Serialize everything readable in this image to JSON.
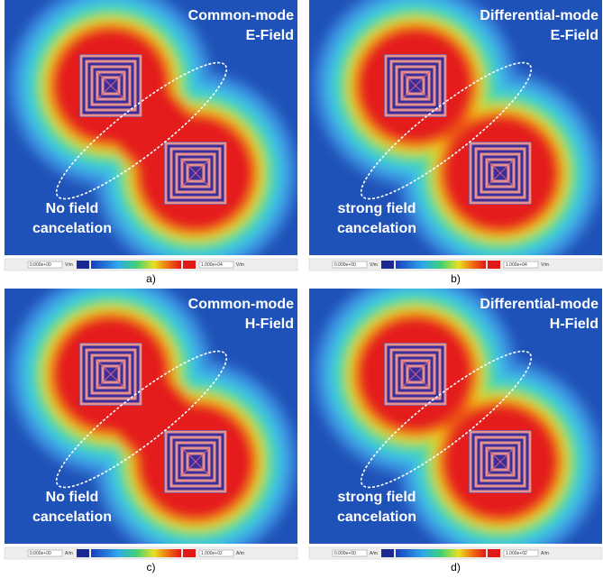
{
  "panels": [
    {
      "title_lines": [
        "Common-mode",
        "E-Field"
      ],
      "note_lines": [
        "No field",
        "cancelation"
      ],
      "scale_min": "0.000e+00",
      "scale_max": "1.000e+04",
      "unit": "V/m",
      "caption": "a)"
    },
    {
      "title_lines": [
        "Differential-mode",
        "E-Field"
      ],
      "note_lines": [
        "strong field",
        "cancelation"
      ],
      "scale_min": "0.000e+00",
      "scale_max": "1.000e+04",
      "unit": "V/m",
      "caption": "b)"
    },
    {
      "title_lines": [
        "Common-mode",
        "H-Field"
      ],
      "note_lines": [
        "No field",
        "cancelation"
      ],
      "scale_min": "0.000e+00",
      "scale_max": "1.000e+02",
      "unit": "A/m",
      "caption": "c)"
    },
    {
      "title_lines": [
        "Differential-mode",
        "H-Field"
      ],
      "note_lines": [
        "strong field",
        "cancelation"
      ],
      "scale_min": "0.000e+00",
      "scale_max": "1.000e+02",
      "unit": "A/m",
      "caption": "d)"
    }
  ]
}
